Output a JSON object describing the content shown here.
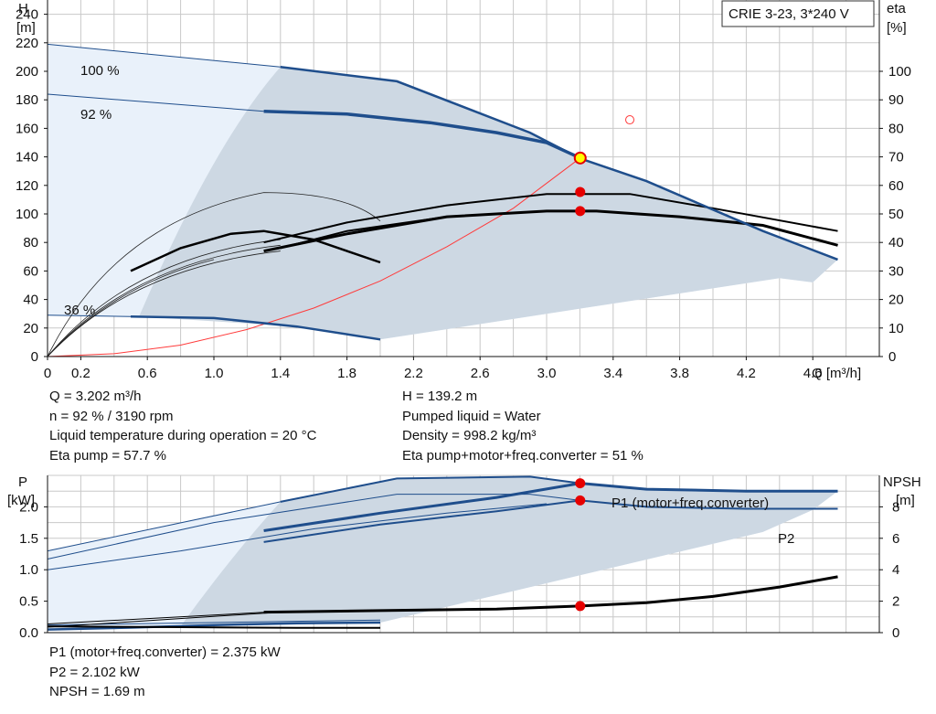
{
  "title": "CRIE 3-23, 3*240 V",
  "chart_data": [
    {
      "type": "line",
      "name": "head-efficiency",
      "y_left": {
        "label_top": "H",
        "label_unit": "[m]",
        "ticks": [
          0,
          20,
          40,
          60,
          80,
          100,
          120,
          140,
          160,
          180,
          200,
          220,
          240
        ],
        "range": [
          0,
          250
        ]
      },
      "y_right": {
        "label_top": "eta",
        "label_unit": "[%]",
        "ticks": [
          0,
          10,
          20,
          30,
          40,
          50,
          60,
          70,
          80,
          90,
          100
        ],
        "range_unit_ratio": 2
      },
      "x": {
        "label": "Q [m³/h]",
        "ticks": [
          "0",
          "0.2",
          "0.6",
          "1.0",
          "1.4",
          "1.8",
          "2.2",
          "2.6",
          "3.0",
          "3.4",
          "3.8",
          "4.2",
          "4.6"
        ],
        "tick_values": [
          0,
          0.2,
          0.6,
          1.0,
          1.4,
          1.8,
          2.2,
          2.6,
          3.0,
          3.4,
          3.8,
          4.2,
          4.6
        ],
        "range": [
          0,
          5.0
        ]
      },
      "speed_labels": [
        "100 %",
        "92 %",
        "36 %"
      ],
      "series": [
        {
          "role": "H-100",
          "x": [
            0,
            1.4,
            2.1,
            2.9,
            3.2,
            3.6,
            4.0,
            4.3,
            4.75
          ],
          "y": [
            219,
            203,
            193,
            157,
            139,
            123,
            103,
            88,
            68
          ]
        },
        {
          "role": "H-92",
          "x": [
            1.3,
            1.8,
            2.3,
            2.7,
            3.0,
            3.202
          ],
          "y": [
            172,
            170,
            164,
            157,
            150,
            139.2
          ]
        },
        {
          "role": "H-36",
          "x": [
            0.5,
            1.0,
            1.5,
            2.0
          ],
          "y": [
            28,
            27,
            21,
            12
          ]
        },
        {
          "role": "system-curve",
          "x": [
            0,
            0.4,
            0.8,
            1.2,
            1.6,
            2.0,
            2.4,
            2.8,
            3.202
          ],
          "y": [
            0,
            2,
            8,
            19,
            34,
            53,
            77,
            104,
            139.2
          ]
        },
        {
          "role": "eta-pump-100",
          "x": [
            1.3,
            1.8,
            2.4,
            3.0,
            3.5,
            4.0,
            4.75
          ],
          "y": [
            40,
            47,
            53,
            57,
            57,
            52,
            44
          ]
        },
        {
          "role": "eta-pump-92",
          "x": [
            1.3,
            1.8,
            2.4,
            3.0,
            3.3,
            3.8,
            4.3,
            4.75
          ],
          "y": [
            37,
            43,
            49,
            51,
            51,
            49,
            46,
            39
          ]
        },
        {
          "role": "eta-total-92",
          "x": [
            1.4,
            1.8,
            2.4,
            3.0,
            3.3,
            3.8,
            4.3,
            4.75
          ],
          "y": [
            38,
            44,
            49,
            51,
            51,
            49,
            46,
            39
          ]
        },
        {
          "role": "eta-36",
          "x": [
            0.5,
            0.8,
            1.1,
            1.3,
            1.6,
            1.8,
            2.0
          ],
          "y": [
            30,
            38,
            43,
            44,
            41,
            37,
            33
          ]
        }
      ],
      "duty_point": {
        "x": 3.202,
        "y": 139.2
      },
      "markers": [
        {
          "x": 3.202,
          "eta": 57.7
        },
        {
          "x": 3.202,
          "eta": 51
        }
      ],
      "hollow_marker": {
        "x": 3.5,
        "eta": 83
      },
      "readout_left": [
        "Q = 3.202 m³/h",
        "n = 92 % / 3190 rpm",
        "Liquid temperature during operation = 20 °C",
        "Eta pump = 57.7 %"
      ],
      "readout_right": [
        "H = 139.2 m",
        "Pumped liquid = Water",
        "Density = 998.2 kg/m³",
        "Eta pump+motor+freq.converter = 51 %"
      ]
    },
    {
      "type": "line",
      "name": "power-npsh",
      "y_left": {
        "label_top": "P",
        "label_unit": "[kW]",
        "ticks": [
          "0.0",
          "0.5",
          "1.0",
          "1.5",
          "2.0"
        ],
        "tick_values": [
          0,
          0.5,
          1.0,
          1.5,
          2.0
        ],
        "range": [
          0,
          2.5
        ]
      },
      "y_right": {
        "label_top": "NPSH",
        "label_unit": "[m]",
        "ticks": [
          "0",
          "2",
          "4",
          "6",
          "8"
        ],
        "tick_values": [
          0,
          2,
          4,
          6,
          8
        ]
      },
      "series": [
        {
          "name": "P1 (motor+freq.converter)",
          "role": "P1-92",
          "x": [
            1.3,
            2.0,
            2.7,
            3.202,
            3.6,
            4.2,
            4.75
          ],
          "y": [
            1.62,
            1.9,
            2.15,
            2.375,
            2.28,
            2.25,
            2.25
          ]
        },
        {
          "name": "P2",
          "role": "P2-92",
          "x": [
            1.3,
            2.0,
            2.7,
            3.202,
            3.6,
            4.2,
            4.75
          ],
          "y": [
            1.44,
            1.72,
            1.93,
            2.102,
            2.0,
            1.97,
            1.97
          ]
        },
        {
          "role": "P1-100",
          "x": [
            0,
            1.4,
            2.1,
            2.9,
            3.202,
            3.6,
            4.2,
            4.75
          ],
          "y": [
            1.3,
            2.08,
            2.45,
            2.48,
            2.375,
            2.28,
            2.25,
            2.25
          ]
        },
        {
          "role": "P-thin-1",
          "x": [
            0,
            1.0,
            2.1,
            2.9,
            3.202
          ],
          "y": [
            1.17,
            1.75,
            2.2,
            2.2,
            2.102
          ]
        },
        {
          "role": "P-thin-2",
          "x": [
            0,
            0.8,
            1.6,
            2.4,
            3.0
          ],
          "y": [
            1.0,
            1.3,
            1.65,
            1.9,
            2.05
          ]
        },
        {
          "role": "P-36",
          "x": [
            0,
            0.5,
            1.0,
            1.5,
            2.0
          ],
          "y": [
            0.05,
            0.08,
            0.12,
            0.15,
            0.16
          ]
        },
        {
          "role": "NPSH",
          "x": [
            1.3,
            2.0,
            2.7,
            3.202,
            3.6,
            4.0,
            4.4,
            4.75
          ],
          "y": [
            1.3,
            1.4,
            1.5,
            1.69,
            1.9,
            2.3,
            2.9,
            3.55
          ]
        },
        {
          "role": "NPSH-36",
          "x": [
            0,
            0.8,
            1.5,
            2.0
          ],
          "y": [
            0.4,
            0.35,
            0.3,
            0.3
          ]
        }
      ],
      "markers": [
        {
          "x": 3.202,
          "y": 2.375
        },
        {
          "x": 3.202,
          "y": 2.102
        },
        {
          "x": 3.202,
          "npsh": 1.69
        }
      ],
      "readout": [
        "P1 (motor+freq.converter) = 2.375 kW",
        "P2 = 2.102 kW",
        "NPSH = 1.69 m"
      ]
    }
  ],
  "colors": {
    "curve": "#1f4e8c",
    "fill_dark": "#cdd8e3",
    "fill_light": "#e9f1fa",
    "marker": "#e60000",
    "marker_yellow": "#ffff00",
    "system": "#ff3b3b",
    "grid": "#c8c8c8",
    "eta": "#000000"
  }
}
